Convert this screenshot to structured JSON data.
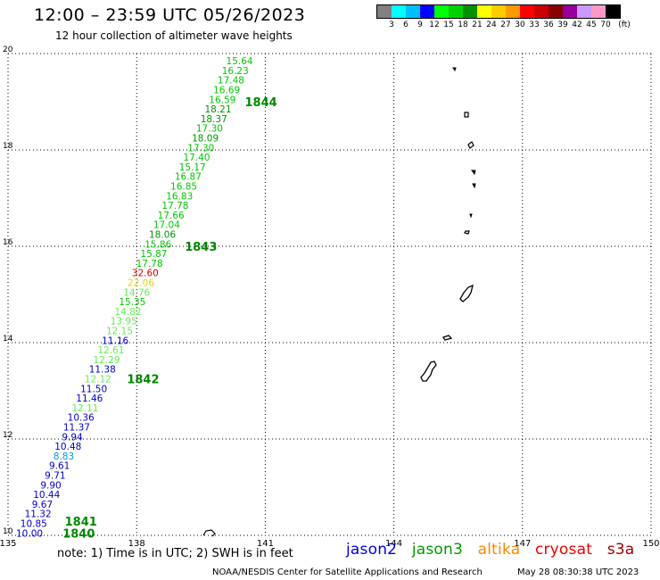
{
  "header": {
    "title": "12:00 – 23:59 UTC 05/26/2023",
    "subtitle": "12 hour collection of altimeter wave heights"
  },
  "legend": {
    "colors": [
      "#808080",
      "#00ffff",
      "#00bfff",
      "#0000ff",
      "#00ff00",
      "#00d000",
      "#009000",
      "#ffff00",
      "#ffcc00",
      "#ff9900",
      "#ff0000",
      "#cc0000",
      "#880000",
      "#990099",
      "#cc99ff",
      "#ff99cc",
      "#000000"
    ],
    "labels": [
      "3",
      "6",
      "9",
      "12",
      "15",
      "18",
      "21",
      "24",
      "27",
      "30",
      "33",
      "36",
      "39",
      "42",
      "45",
      "70"
    ],
    "unit": "(ft)"
  },
  "chart_data": {
    "type": "scatter",
    "xlim": [
      135,
      150
    ],
    "ylim": [
      10,
      20
    ],
    "x_ticks": [
      "135",
      "138",
      "141",
      "144",
      "147",
      "150"
    ],
    "y_ticks": [
      "10",
      "12",
      "14",
      "16",
      "18",
      "20"
    ],
    "grid": true,
    "points": [
      {
        "lon": 140.4,
        "lat": 19.85,
        "value": "15.64",
        "color": "#00c800"
      },
      {
        "lon": 140.3,
        "lat": 19.65,
        "value": "16.23",
        "color": "#00c800"
      },
      {
        "lon": 140.2,
        "lat": 19.45,
        "value": "17.48",
        "color": "#00c800"
      },
      {
        "lon": 140.1,
        "lat": 19.25,
        "value": "16.69",
        "color": "#00c800"
      },
      {
        "lon": 140.0,
        "lat": 19.05,
        "value": "16.59",
        "color": "#00c800"
      },
      {
        "lon": 139.9,
        "lat": 18.85,
        "value": "18.21",
        "color": "#009600"
      },
      {
        "lon": 139.8,
        "lat": 18.65,
        "value": "18.37",
        "color": "#009600"
      },
      {
        "lon": 139.7,
        "lat": 18.45,
        "value": "17.30",
        "color": "#00c800"
      },
      {
        "lon": 139.6,
        "lat": 18.25,
        "value": "18.09",
        "color": "#009600"
      },
      {
        "lon": 139.5,
        "lat": 18.05,
        "value": "17.30",
        "color": "#00c800"
      },
      {
        "lon": 139.4,
        "lat": 17.85,
        "value": "17.40",
        "color": "#00c800"
      },
      {
        "lon": 139.3,
        "lat": 17.65,
        "value": "15.17",
        "color": "#00c800"
      },
      {
        "lon": 139.2,
        "lat": 17.45,
        "value": "16.87",
        "color": "#00c800"
      },
      {
        "lon": 139.1,
        "lat": 17.25,
        "value": "16.85",
        "color": "#00c800"
      },
      {
        "lon": 139.0,
        "lat": 17.05,
        "value": "16.83",
        "color": "#00c800"
      },
      {
        "lon": 138.9,
        "lat": 16.85,
        "value": "17.78",
        "color": "#00c800"
      },
      {
        "lon": 138.8,
        "lat": 16.65,
        "value": "17.66",
        "color": "#00c800"
      },
      {
        "lon": 138.7,
        "lat": 16.45,
        "value": "17.04",
        "color": "#00c800"
      },
      {
        "lon": 138.6,
        "lat": 16.25,
        "value": "18.06",
        "color": "#009600"
      },
      {
        "lon": 138.5,
        "lat": 16.05,
        "value": "15.86",
        "color": "#00c800"
      },
      {
        "lon": 138.4,
        "lat": 15.85,
        "value": "15.87",
        "color": "#00c800"
      },
      {
        "lon": 138.3,
        "lat": 15.65,
        "value": "17.78",
        "color": "#00c800"
      },
      {
        "lon": 138.2,
        "lat": 15.45,
        "value": "32.60",
        "color": "#e00000"
      },
      {
        "lon": 138.1,
        "lat": 15.25,
        "value": "22.06",
        "color": "#e6d800"
      },
      {
        "lon": 138.0,
        "lat": 15.05,
        "value": "14.76",
        "color": "#66ee55"
      },
      {
        "lon": 137.9,
        "lat": 14.85,
        "value": "15.35",
        "color": "#00c800"
      },
      {
        "lon": 137.8,
        "lat": 14.65,
        "value": "14.82",
        "color": "#66ee55"
      },
      {
        "lon": 137.7,
        "lat": 14.45,
        "value": "13.95",
        "color": "#66ee55"
      },
      {
        "lon": 137.6,
        "lat": 14.25,
        "value": "12.15",
        "color": "#66ee55"
      },
      {
        "lon": 137.5,
        "lat": 14.05,
        "value": "11.16",
        "color": "#0000cc"
      },
      {
        "lon": 137.4,
        "lat": 13.85,
        "value": "12.61",
        "color": "#66ee55"
      },
      {
        "lon": 137.3,
        "lat": 13.65,
        "value": "12.29",
        "color": "#66ee55"
      },
      {
        "lon": 137.2,
        "lat": 13.45,
        "value": "11.38",
        "color": "#0000cc"
      },
      {
        "lon": 137.1,
        "lat": 13.25,
        "value": "12.12",
        "color": "#66ee55"
      },
      {
        "lon": 137.0,
        "lat": 13.05,
        "value": "11.50",
        "color": "#0000cc"
      },
      {
        "lon": 136.9,
        "lat": 12.85,
        "value": "11.46",
        "color": "#0000cc"
      },
      {
        "lon": 136.8,
        "lat": 12.65,
        "value": "12.11",
        "color": "#66ee55"
      },
      {
        "lon": 136.7,
        "lat": 12.45,
        "value": "10.36",
        "color": "#0000cc"
      },
      {
        "lon": 136.6,
        "lat": 12.25,
        "value": "11.37",
        "color": "#0000cc"
      },
      {
        "lon": 136.5,
        "lat": 12.05,
        "value": "9.94",
        "color": "#0000cc"
      },
      {
        "lon": 136.4,
        "lat": 11.85,
        "value": "10.48",
        "color": "#0000cc"
      },
      {
        "lon": 136.3,
        "lat": 11.65,
        "value": "8.83",
        "color": "#0099dd"
      },
      {
        "lon": 136.2,
        "lat": 11.45,
        "value": "9.61",
        "color": "#0000cc"
      },
      {
        "lon": 136.1,
        "lat": 11.25,
        "value": "9.71",
        "color": "#0000cc"
      },
      {
        "lon": 136.0,
        "lat": 11.05,
        "value": "9.90",
        "color": "#0000cc"
      },
      {
        "lon": 135.9,
        "lat": 10.85,
        "value": "10.44",
        "color": "#0000cc"
      },
      {
        "lon": 135.8,
        "lat": 10.65,
        "value": "9.67",
        "color": "#0000cc"
      },
      {
        "lon": 135.7,
        "lat": 10.45,
        "value": "11.32",
        "color": "#0000cc"
      },
      {
        "lon": 135.6,
        "lat": 10.25,
        "value": "10.85",
        "color": "#0000cc"
      },
      {
        "lon": 135.5,
        "lat": 10.05,
        "value": "10.00",
        "color": "#0000cc"
      }
    ],
    "annotations": [
      {
        "text": "1844",
        "lon": 140.9,
        "lat": 19.0
      },
      {
        "text": "1843",
        "lon": 139.5,
        "lat": 16.0
      },
      {
        "text": "1842",
        "lon": 138.15,
        "lat": 13.25
      },
      {
        "text": "1841",
        "lon": 136.7,
        "lat": 10.3
      },
      {
        "text": "1840",
        "lon": 136.65,
        "lat": 10.05
      }
    ]
  },
  "footer": {
    "notes": "note: 1) Time is in UTC; 2) SWH is in feet",
    "satellites": [
      {
        "name": "jason2",
        "color": "#0000dd"
      },
      {
        "name": "jason3",
        "color": "#009900"
      },
      {
        "name": "altika",
        "color": "#ff8800"
      },
      {
        "name": "cryosat",
        "color": "#ee0000"
      },
      {
        "name": "s3a",
        "color": "#990000"
      }
    ],
    "credit": "NOAA/NESDIS Center for Satellite Applications and Research",
    "timestamp": "May 28 08:30:38 UTC 2023"
  }
}
